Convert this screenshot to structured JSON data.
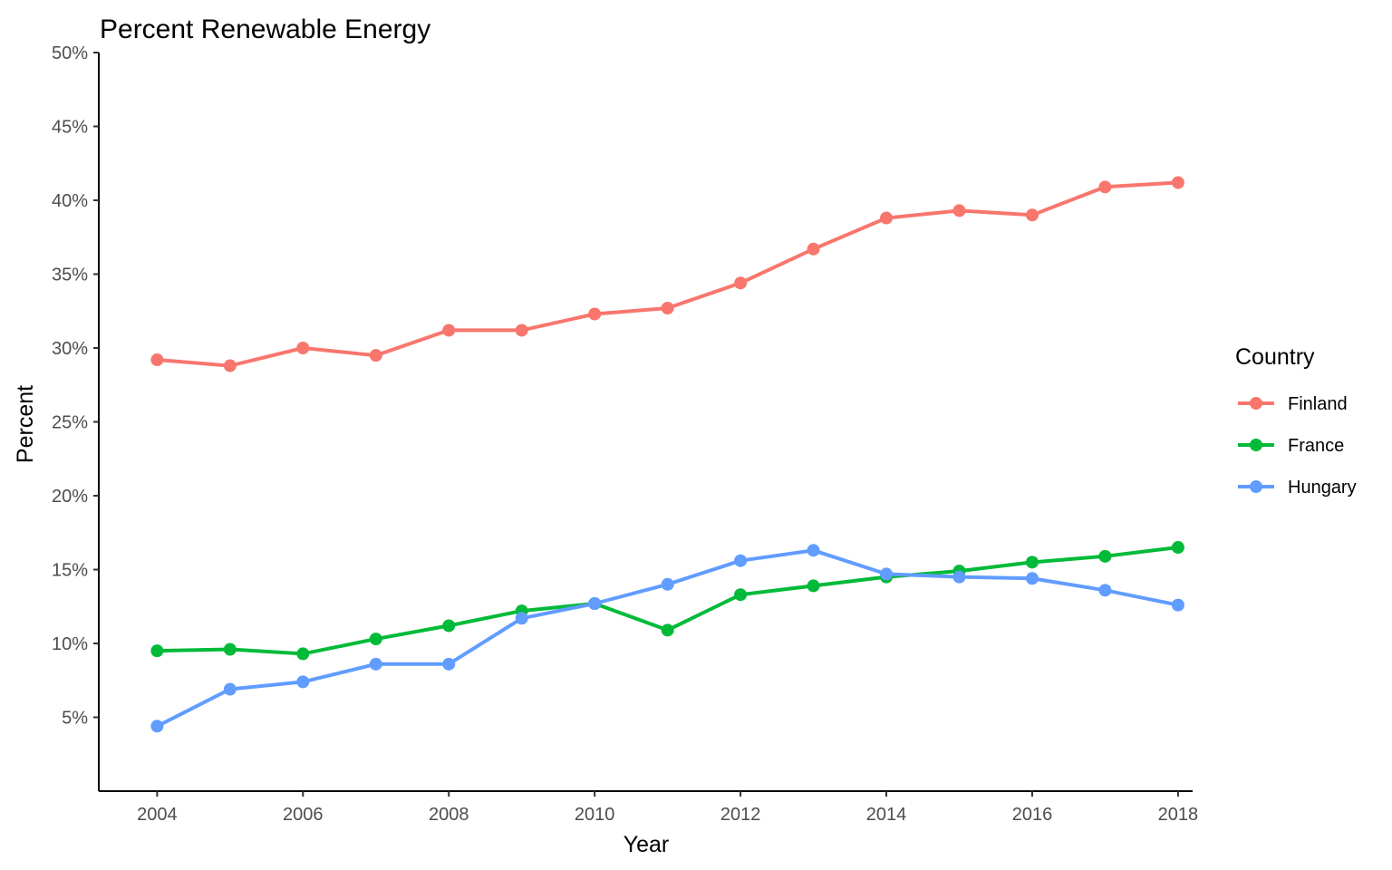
{
  "chart_data": {
    "type": "line",
    "title": "Percent Renewable Energy",
    "xlabel": "Year",
    "ylabel": "Percent",
    "xlim": [
      2003.2,
      2018.2
    ],
    "ylim": [
      0,
      50
    ],
    "x_ticks": [
      2004,
      2006,
      2008,
      2010,
      2012,
      2014,
      2016,
      2018
    ],
    "y_ticks": [
      5,
      10,
      15,
      20,
      25,
      30,
      35,
      40,
      45,
      50
    ],
    "y_tick_suffix": "%",
    "grid": false,
    "legend": {
      "title": "Country",
      "position": "right"
    },
    "x": [
      2004,
      2005,
      2006,
      2007,
      2008,
      2009,
      2010,
      2011,
      2012,
      2013,
      2014,
      2015,
      2016,
      2017,
      2018
    ],
    "series": [
      {
        "name": "Finland",
        "color": "#F8766D",
        "values": [
          29.2,
          28.8,
          30.0,
          29.5,
          31.2,
          31.2,
          32.3,
          32.7,
          34.4,
          36.7,
          38.8,
          39.3,
          39.0,
          40.9,
          41.2
        ]
      },
      {
        "name": "France",
        "color": "#00BA38",
        "values": [
          9.5,
          9.6,
          9.3,
          10.3,
          11.2,
          12.2,
          12.7,
          10.9,
          13.3,
          13.9,
          14.5,
          14.9,
          15.5,
          15.9,
          16.5
        ]
      },
      {
        "name": "Hungary",
        "color": "#619CFF",
        "values": [
          4.4,
          6.9,
          7.4,
          8.6,
          8.6,
          11.7,
          12.7,
          14.0,
          15.6,
          16.3,
          14.7,
          14.5,
          14.4,
          13.6,
          12.6
        ]
      }
    ]
  }
}
